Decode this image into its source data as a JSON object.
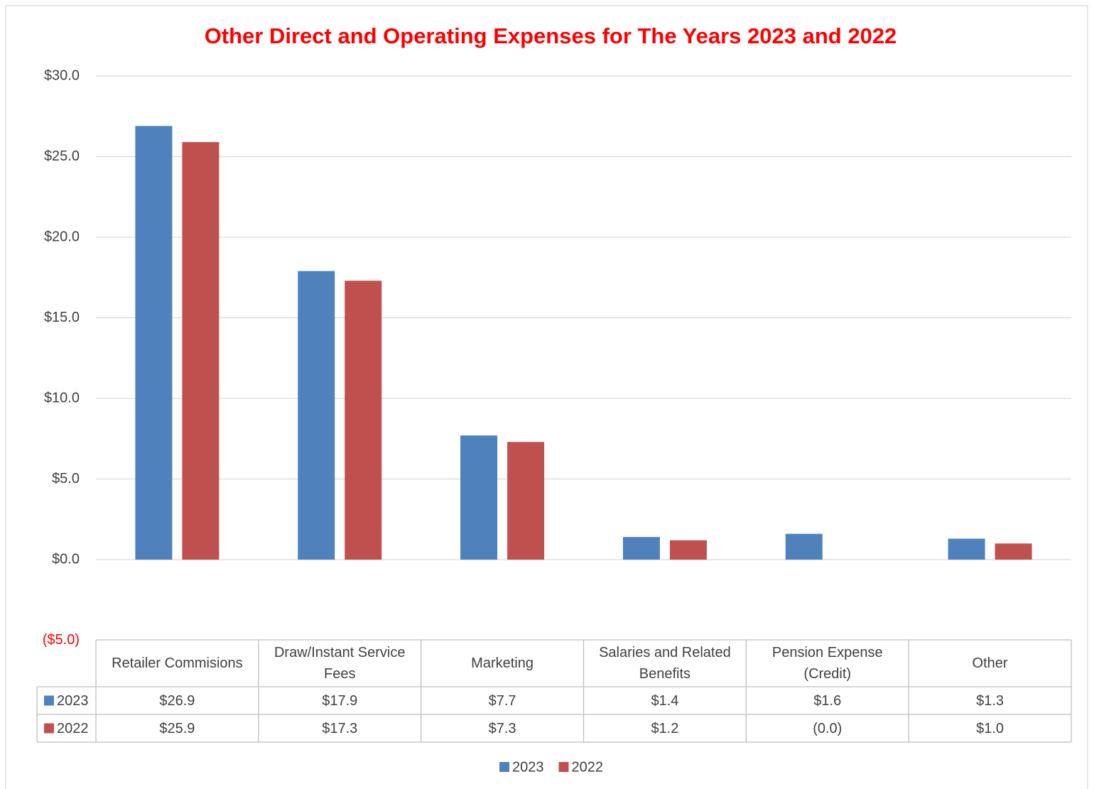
{
  "chart_data": {
    "type": "bar",
    "title": "Other Direct and Operating Expenses for The Years 2023 and 2022",
    "categories": [
      "Retailer Commisions",
      "Draw/Instant Service Fees",
      "Marketing",
      "Salaries and Related Benefits",
      "Pension Expense (Credit)",
      "Other"
    ],
    "series": [
      {
        "name": "2023",
        "color": "#4f81bd",
        "values": [
          26.9,
          17.9,
          7.7,
          1.4,
          1.6,
          1.3
        ],
        "value_labels": [
          "$26.9",
          "$17.9",
          "$7.7",
          "$1.4",
          "$1.6",
          "$1.3"
        ]
      },
      {
        "name": "2022",
        "color": "#c0504d",
        "values": [
          25.9,
          17.3,
          7.3,
          1.2,
          0,
          1.0
        ],
        "value_labels": [
          "$25.9",
          "$17.3",
          "$7.3",
          "$1.2",
          "(0.0)",
          "$1.0"
        ]
      }
    ],
    "ylim": [
      -5,
      30
    ],
    "yticks": [
      {
        "value": -5,
        "label": "($5.0)"
      },
      {
        "value": 0,
        "label": "$0.0"
      },
      {
        "value": 5,
        "label": "$5.0"
      },
      {
        "value": 10,
        "label": "$10.0"
      },
      {
        "value": 15,
        "label": "$15.0"
      },
      {
        "value": 20,
        "label": "$20.0"
      },
      {
        "value": 25,
        "label": "$25.0"
      },
      {
        "value": 30,
        "label": "$30.0"
      }
    ],
    "grid": true
  }
}
